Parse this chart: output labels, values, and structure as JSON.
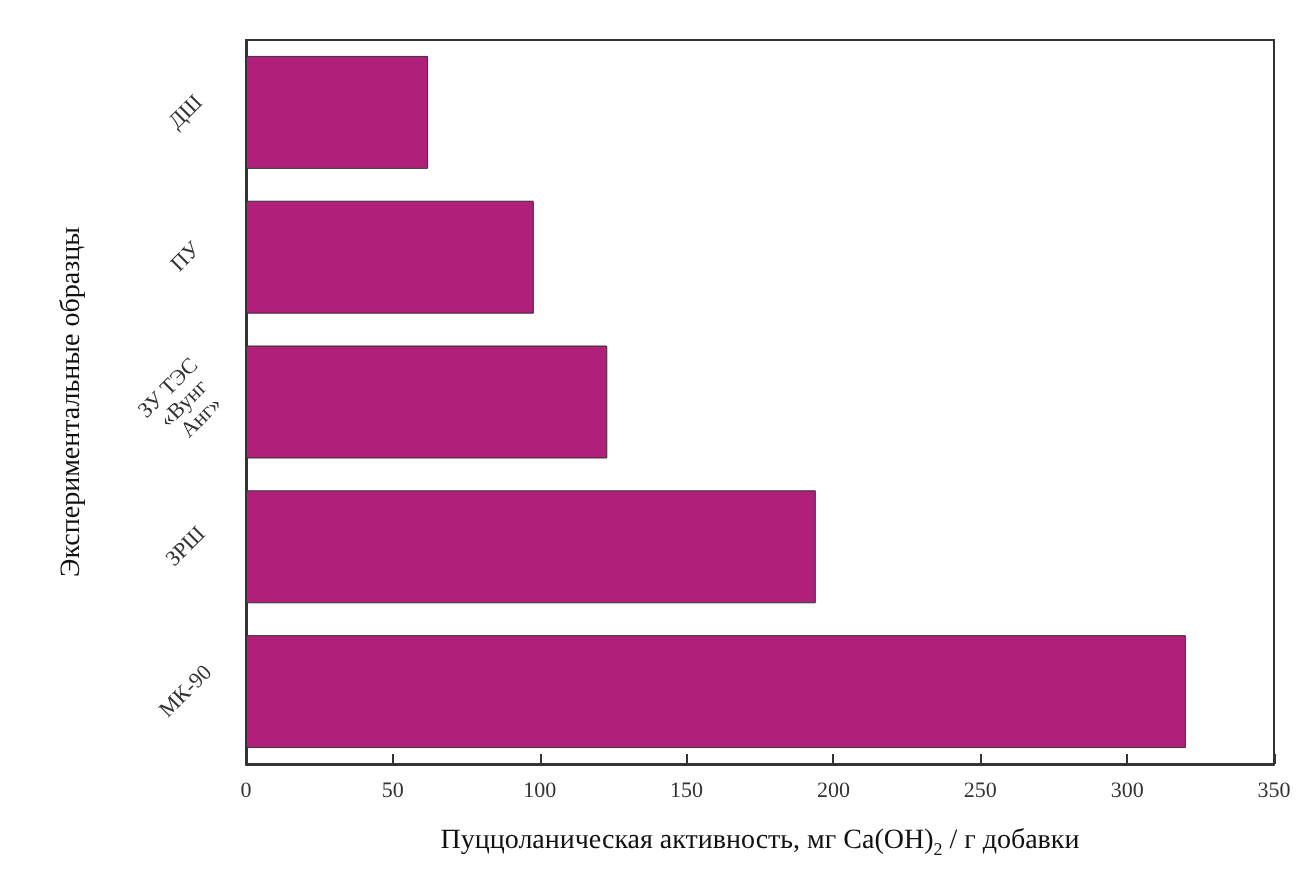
{
  "chart_data": {
    "type": "bar",
    "orientation": "horizontal",
    "xlabel": "Пуццоланическая активность, мг Ca(OH)$_{2}$ / г добавки",
    "ylabel": "Экспериментальные образцы",
    "categories": [
      "ДШ",
      "ПУ",
      "ЗУ ТЭС «Вунг Анг»",
      "ЗРШ",
      "МК-90"
    ],
    "values": [
      62,
      98,
      123,
      194,
      320
    ],
    "color": "#b0207a",
    "xlim": [
      0,
      350
    ],
    "xticks": [
      0,
      50,
      100,
      150,
      200,
      250,
      300,
      350
    ],
    "grid": false
  }
}
